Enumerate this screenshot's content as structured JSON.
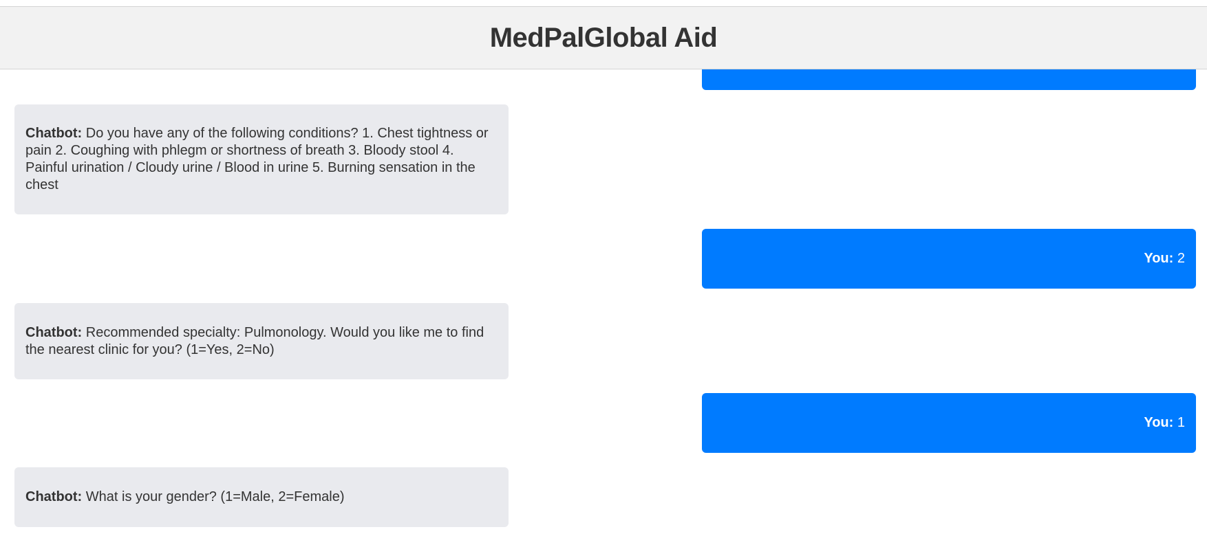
{
  "header": {
    "title": "MedPalGlobal Aid"
  },
  "colors": {
    "user_bubble": "#007bff",
    "bot_bubble": "#e9eaee",
    "header_bg": "#f2f2f2",
    "text": "#333333"
  },
  "messages": [
    {
      "role": "user",
      "speaker": "",
      "text": ""
    },
    {
      "role": "bot",
      "speaker": "Chatbot:",
      "text": " Do you have any of the following conditions? 1. Chest tightness or pain 2. Coughing with phlegm or shortness of breath 3. Bloody stool 4. Painful urination / Cloudy urine / Blood in urine 5. Burning sensation in the chest"
    },
    {
      "role": "user",
      "speaker": "You:",
      "text": " 2"
    },
    {
      "role": "bot",
      "speaker": "Chatbot:",
      "text": " Recommended specialty: Pulmonology. Would you like me to find the nearest clinic for you? (1=Yes, 2=No)"
    },
    {
      "role": "user",
      "speaker": "You:",
      "text": " 1"
    },
    {
      "role": "bot",
      "speaker": "Chatbot:",
      "text": " What is your gender? (1=Male, 2=Female)"
    }
  ]
}
